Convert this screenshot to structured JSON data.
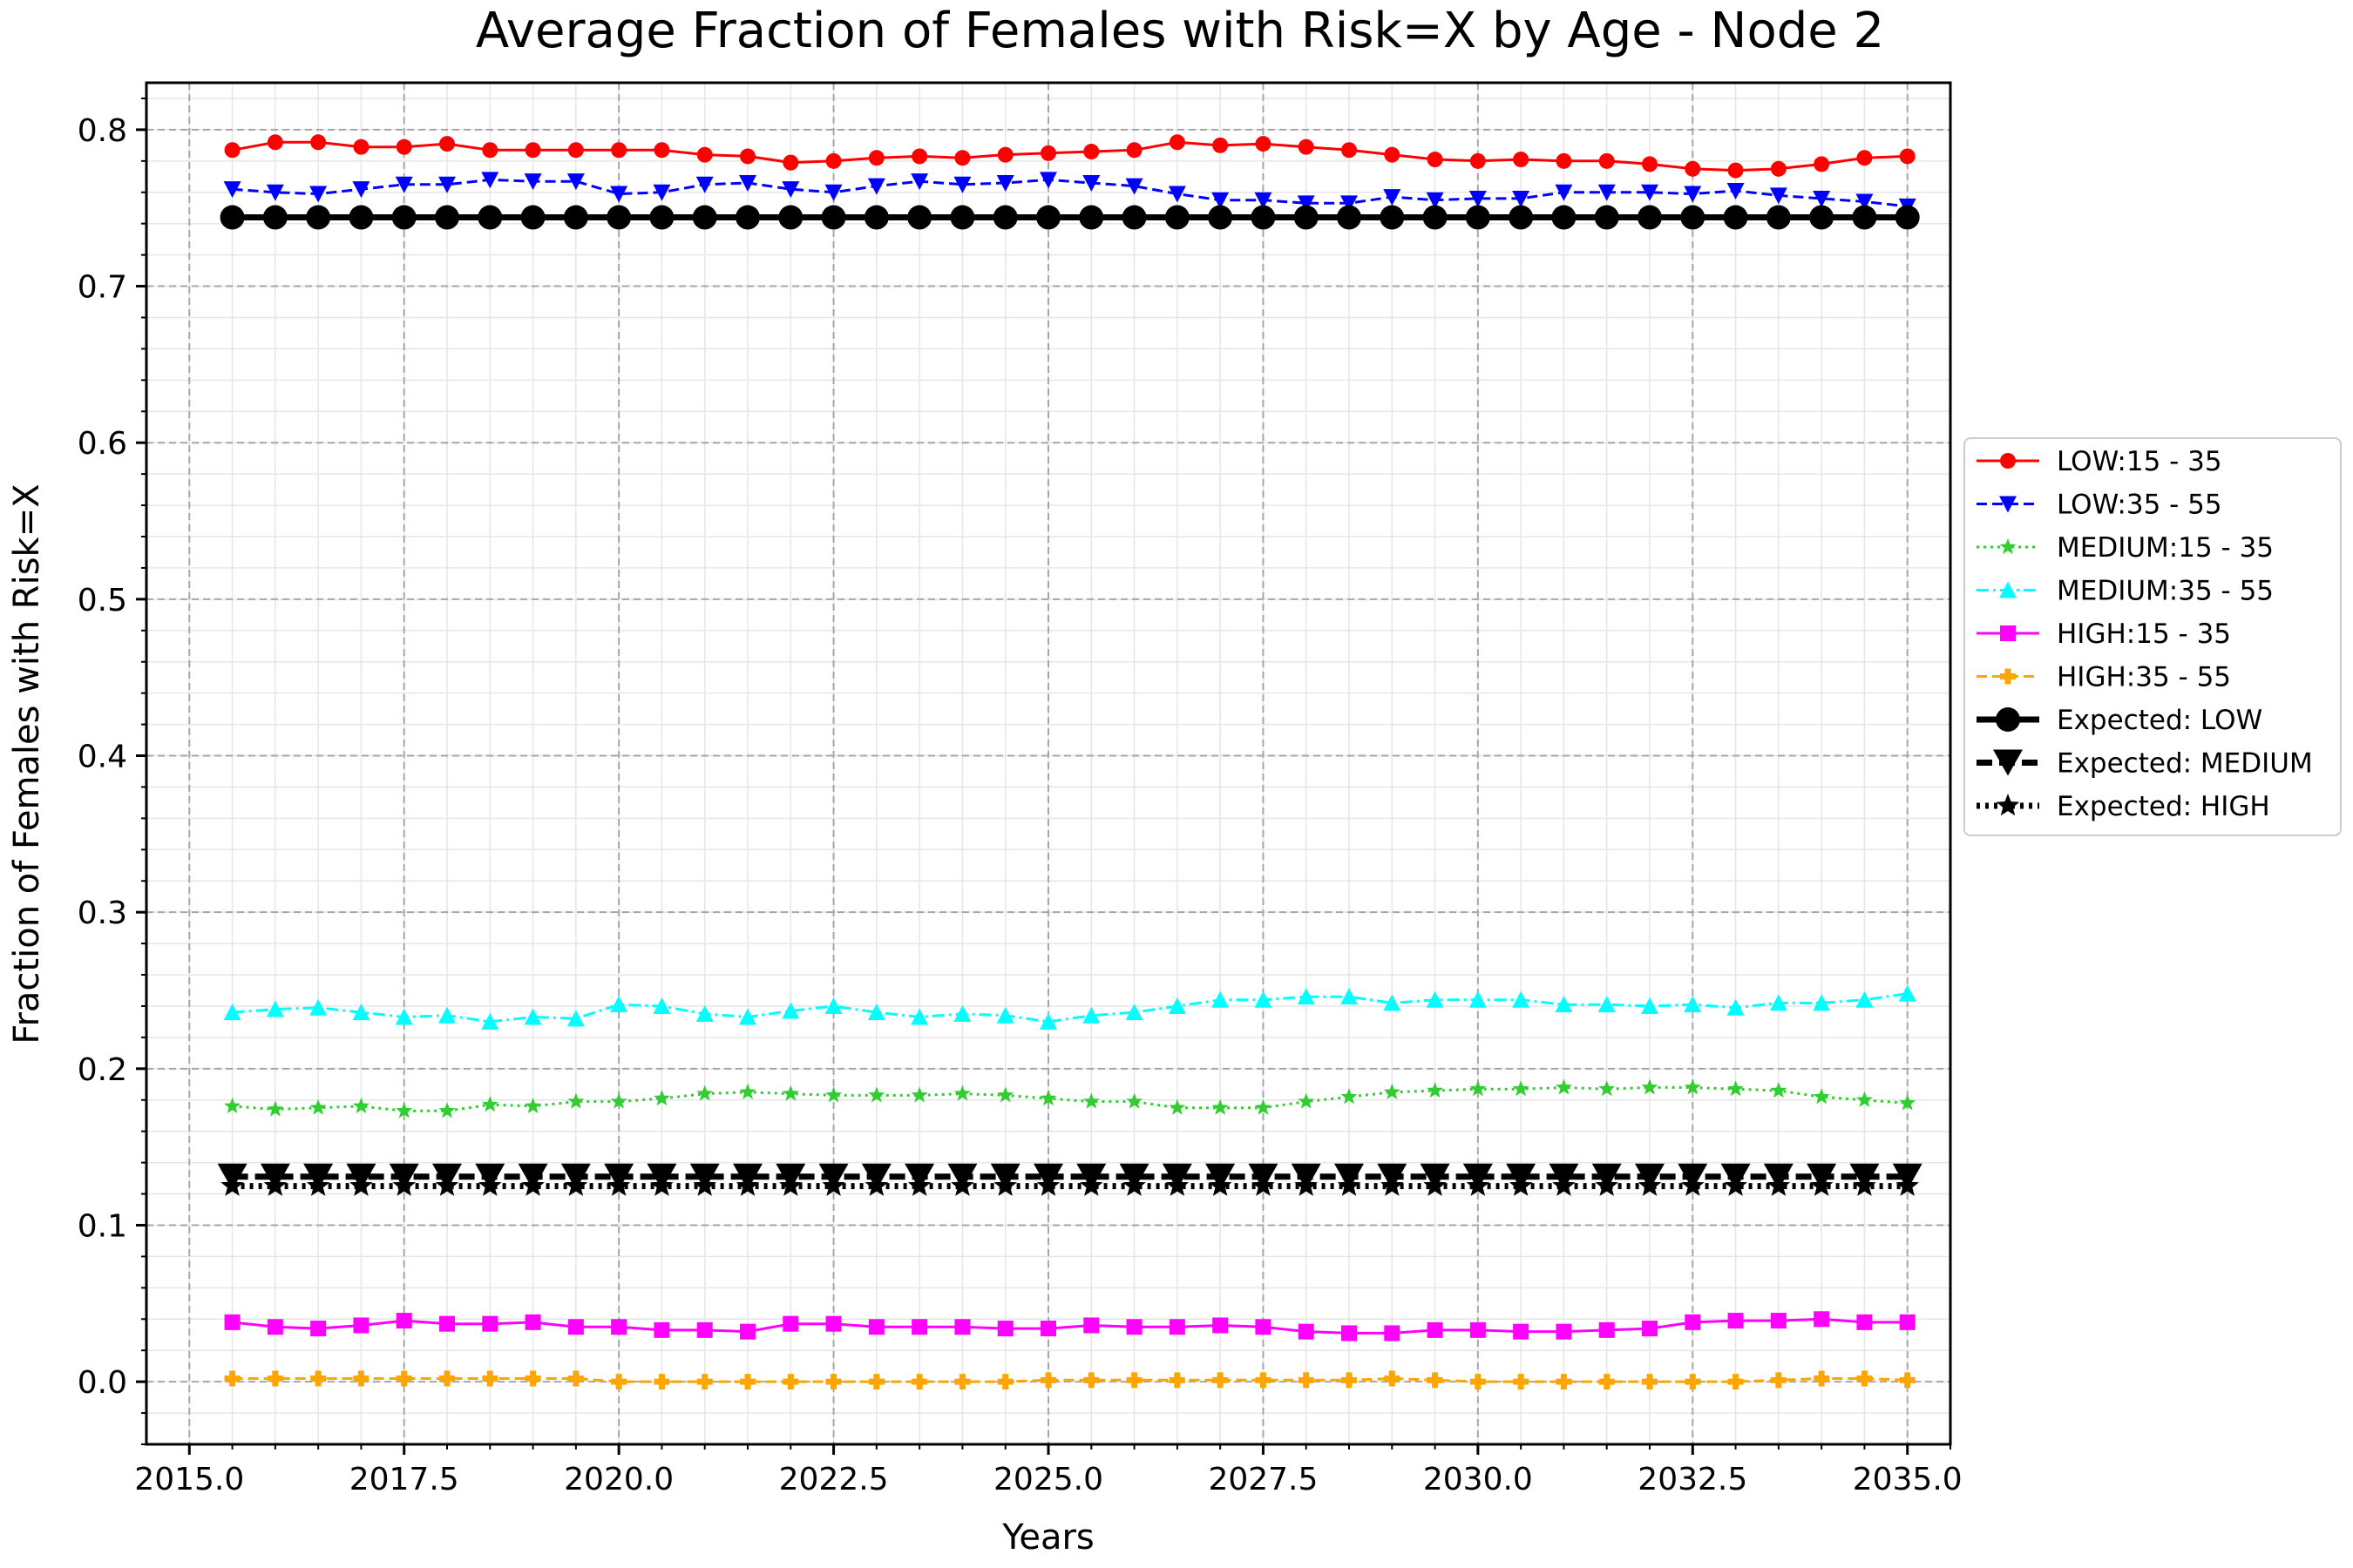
{
  "chart_data": {
    "type": "line",
    "title": "Average Fraction of Females with Risk=X by Age - Node 2",
    "xlabel": "Years",
    "ylabel": "Fraction of Females with Risk=X",
    "xlim": [
      2014.5,
      2035.5
    ],
    "ylim": [
      -0.04,
      0.83
    ],
    "xticks": [
      2015.0,
      2017.5,
      2020.0,
      2022.5,
      2025.0,
      2027.5,
      2030.0,
      2032.5,
      2035.0
    ],
    "xtick_labels": [
      "2015.0",
      "2017.5",
      "2020.0",
      "2022.5",
      "2025.0",
      "2027.5",
      "2030.0",
      "2032.5",
      "2035.0"
    ],
    "yticks": [
      0.0,
      0.1,
      0.2,
      0.3,
      0.4,
      0.5,
      0.6,
      0.7,
      0.8
    ],
    "ytick_labels": [
      "0.0",
      "0.1",
      "0.2",
      "0.3",
      "0.4",
      "0.5",
      "0.6",
      "0.7",
      "0.8"
    ],
    "grid": true,
    "legend_position": "right, outside plot",
    "x": [
      2015.5,
      2016.0,
      2016.5,
      2017.0,
      2017.5,
      2018.0,
      2018.5,
      2019.0,
      2019.5,
      2020.0,
      2020.5,
      2021.0,
      2021.5,
      2022.0,
      2022.5,
      2023.0,
      2023.5,
      2024.0,
      2024.5,
      2025.0,
      2025.5,
      2026.0,
      2026.5,
      2027.0,
      2027.5,
      2028.0,
      2028.5,
      2029.0,
      2029.5,
      2030.0,
      2030.5,
      2031.0,
      2031.5,
      2032.0,
      2032.5,
      2033.0,
      2033.5,
      2034.0,
      2034.5,
      2035.0
    ],
    "series": [
      {
        "name": "LOW:15 - 35",
        "color": "#ff0000",
        "line_style": "solid",
        "marker": "circle",
        "values": [
          0.787,
          0.792,
          0.792,
          0.789,
          0.789,
          0.791,
          0.787,
          0.787,
          0.787,
          0.787,
          0.787,
          0.784,
          0.783,
          0.779,
          0.78,
          0.782,
          0.783,
          0.782,
          0.784,
          0.785,
          0.786,
          0.787,
          0.792,
          0.79,
          0.791,
          0.789,
          0.787,
          0.784,
          0.781,
          0.78,
          0.781,
          0.78,
          0.78,
          0.778,
          0.775,
          0.774,
          0.775,
          0.778,
          0.782,
          0.783
        ]
      },
      {
        "name": "LOW:35 - 55",
        "color": "#0000ff",
        "line_style": "dashed",
        "marker": "triangle-down",
        "values": [
          0.762,
          0.76,
          0.759,
          0.762,
          0.765,
          0.765,
          0.768,
          0.767,
          0.767,
          0.759,
          0.76,
          0.765,
          0.766,
          0.762,
          0.76,
          0.764,
          0.767,
          0.765,
          0.766,
          0.768,
          0.766,
          0.764,
          0.759,
          0.755,
          0.755,
          0.753,
          0.753,
          0.757,
          0.755,
          0.756,
          0.756,
          0.76,
          0.76,
          0.76,
          0.759,
          0.761,
          0.758,
          0.756,
          0.754,
          0.751
        ]
      },
      {
        "name": "MEDIUM:15 - 35",
        "color": "#32cd32",
        "line_style": "dotted",
        "marker": "star",
        "values": [
          0.176,
          0.174,
          0.175,
          0.176,
          0.173,
          0.173,
          0.177,
          0.176,
          0.179,
          0.179,
          0.181,
          0.184,
          0.185,
          0.184,
          0.183,
          0.183,
          0.183,
          0.184,
          0.183,
          0.181,
          0.179,
          0.179,
          0.175,
          0.175,
          0.175,
          0.179,
          0.182,
          0.185,
          0.186,
          0.187,
          0.187,
          0.188,
          0.187,
          0.188,
          0.188,
          0.187,
          0.186,
          0.182,
          0.18,
          0.178
        ]
      },
      {
        "name": "MEDIUM:35 - 55",
        "color": "#00ffff",
        "line_style": "dashdot",
        "marker": "triangle-up",
        "values": [
          0.236,
          0.238,
          0.239,
          0.236,
          0.233,
          0.234,
          0.23,
          0.233,
          0.232,
          0.241,
          0.24,
          0.235,
          0.233,
          0.237,
          0.24,
          0.236,
          0.233,
          0.235,
          0.234,
          0.23,
          0.234,
          0.236,
          0.24,
          0.244,
          0.244,
          0.246,
          0.246,
          0.242,
          0.244,
          0.244,
          0.244,
          0.241,
          0.241,
          0.24,
          0.241,
          0.239,
          0.242,
          0.242,
          0.244,
          0.248
        ]
      },
      {
        "name": "HIGH:15 - 35",
        "color": "#ff00ff",
        "line_style": "solid",
        "marker": "square",
        "values": [
          0.038,
          0.035,
          0.034,
          0.036,
          0.039,
          0.037,
          0.037,
          0.038,
          0.035,
          0.035,
          0.033,
          0.033,
          0.032,
          0.037,
          0.037,
          0.035,
          0.035,
          0.035,
          0.034,
          0.034,
          0.036,
          0.035,
          0.035,
          0.036,
          0.035,
          0.032,
          0.031,
          0.031,
          0.033,
          0.033,
          0.032,
          0.032,
          0.033,
          0.034,
          0.038,
          0.039,
          0.039,
          0.04,
          0.038,
          0.038
        ]
      },
      {
        "name": "HIGH:35 - 55",
        "color": "#ffa500",
        "line_style": "dashed",
        "marker": "plus-filled",
        "values": [
          0.002,
          0.002,
          0.002,
          0.002,
          0.002,
          0.002,
          0.002,
          0.002,
          0.002,
          0.0,
          0.0,
          0.0,
          0.0,
          0.0,
          0.0,
          0.0,
          0.0,
          0.0,
          0.0,
          0.001,
          0.001,
          0.001,
          0.001,
          0.001,
          0.001,
          0.001,
          0.001,
          0.002,
          0.001,
          0.0,
          0.0,
          0.0,
          0.0,
          0.0,
          0.0,
          0.0,
          0.001,
          0.002,
          0.002,
          0.001
        ]
      },
      {
        "name": "Expected: LOW",
        "color": "#000000",
        "line_style": "solid-thick",
        "marker": "circle-large",
        "constant": 0.744
      },
      {
        "name": "Expected: MEDIUM",
        "color": "#000000",
        "line_style": "dashed-thick",
        "marker": "triangle-down-large",
        "constant": 0.131
      },
      {
        "name": "Expected: HIGH",
        "color": "#000000",
        "line_style": "dotted-thick",
        "marker": "star-large",
        "constant": 0.125
      }
    ]
  }
}
